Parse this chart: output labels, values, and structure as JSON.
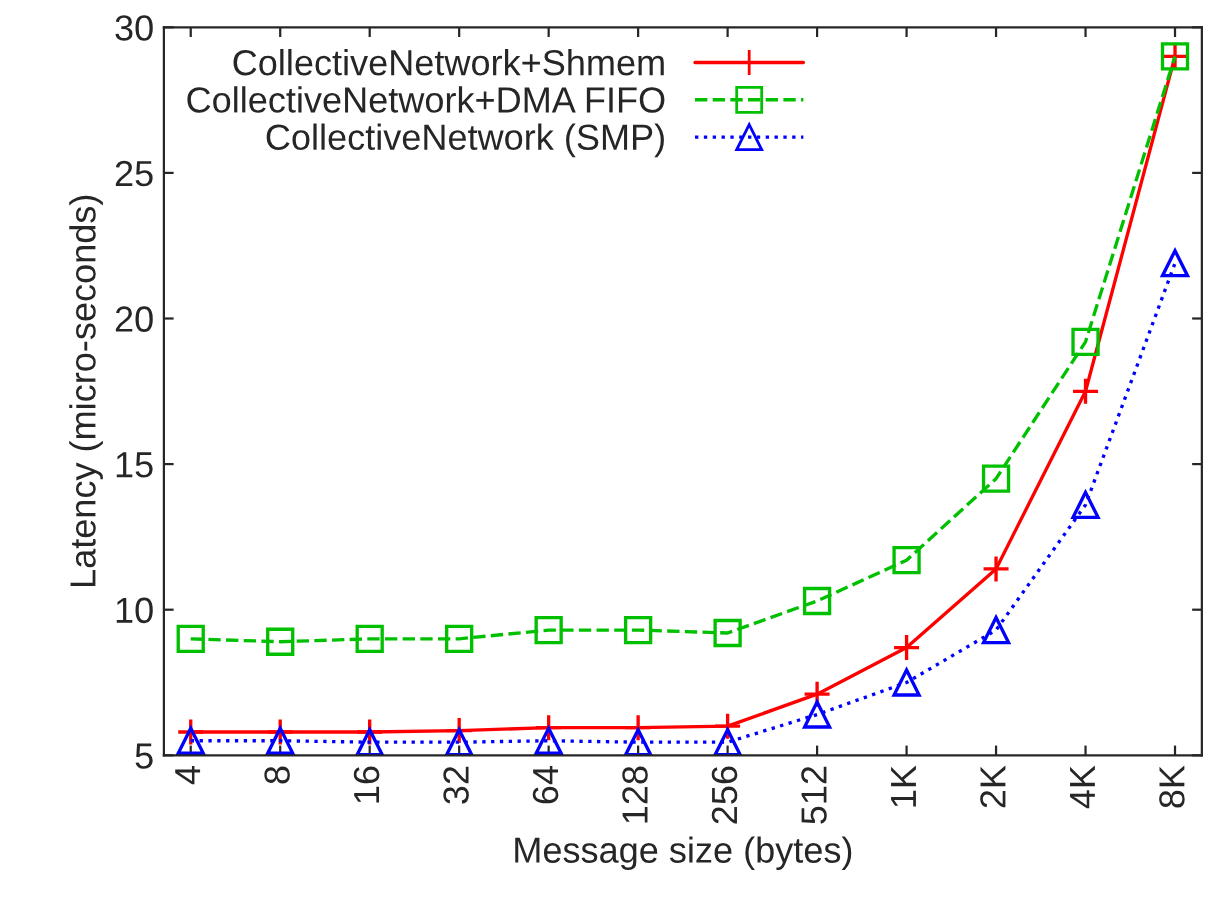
{
  "chart_data": {
    "type": "line",
    "xlabel": "Message size (bytes)",
    "ylabel": "Latency (micro-seconds)",
    "categories": [
      "4",
      "8",
      "16",
      "32",
      "64",
      "128",
      "256",
      "512",
      "1K",
      "2K",
      "4K",
      "8K"
    ],
    "series": [
      {
        "name": "CollectiveNetwork+Shmem",
        "color": "#ff0000",
        "marker": "cross",
        "line_style": "solid",
        "values": [
          5.8,
          5.8,
          5.8,
          5.85,
          5.95,
          5.95,
          6.0,
          7.1,
          8.7,
          11.4,
          17.5,
          29.0
        ]
      },
      {
        "name": "CollectiveNetwork+DMA FIFO",
        "color": "#00c000",
        "marker": "square",
        "line_style": "dashed",
        "values": [
          9.0,
          8.9,
          9.0,
          9.0,
          9.3,
          9.3,
          9.2,
          10.3,
          11.7,
          14.5,
          19.2,
          29.0
        ]
      },
      {
        "name": "CollectiveNetwork (SMP)",
        "color": "#0000ff",
        "marker": "triangle",
        "line_style": "dotted",
        "values": [
          5.5,
          5.5,
          5.45,
          5.45,
          5.5,
          5.45,
          5.45,
          6.4,
          7.5,
          9.3,
          13.6,
          21.9
        ]
      }
    ],
    "ylim": [
      5,
      30
    ],
    "yticks": [
      5,
      10,
      15,
      20,
      25,
      30
    ],
    "grid": false,
    "legend": "top left"
  }
}
